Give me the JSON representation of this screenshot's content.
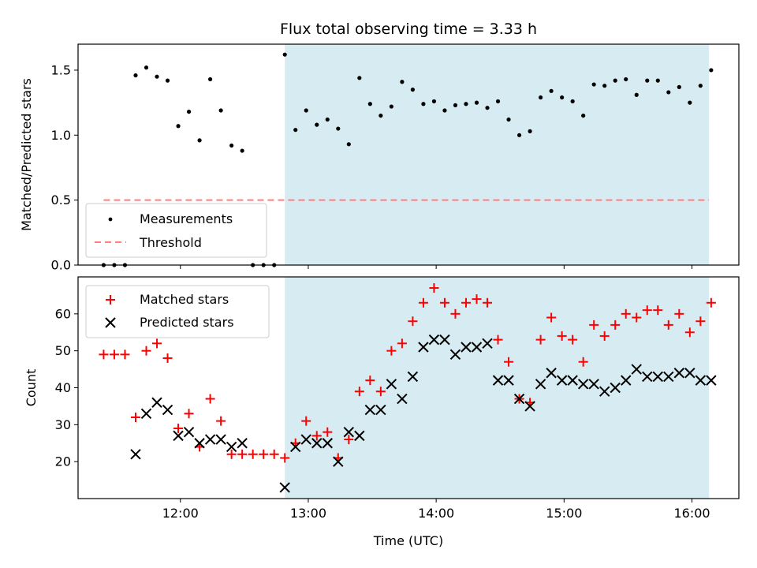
{
  "chart_data": [
    {
      "type": "scatter",
      "title": "Flux total observing time = 3.33 h",
      "xlabel": "",
      "ylabel": "Matched/Predicted stars",
      "xlim": [
        "11:12",
        "16:22"
      ],
      "ylim": [
        0,
        1.7
      ],
      "yticks": [
        "0.0",
        "0.5",
        "1.0",
        "1.5"
      ],
      "shaded_span": {
        "start": "12:49",
        "end": "16:08",
        "color": "#add8e6"
      },
      "legend_position": "lower-left",
      "legend": [
        "Measurements",
        "Threshold"
      ],
      "threshold": {
        "name": "Threshold",
        "value": 0.5,
        "x_start": "11:24",
        "x_end": "16:08",
        "color": "#ff7f7f"
      },
      "series": [
        {
          "name": "Measurements",
          "color": "#000000",
          "points": [
            [
              "11:24",
              0.0
            ],
            [
              "11:29",
              0.0
            ],
            [
              "11:34",
              0.0
            ],
            [
              "11:39",
              1.46
            ],
            [
              "11:44",
              1.52
            ],
            [
              "11:49",
              1.45
            ],
            [
              "11:54",
              1.42
            ],
            [
              "11:59",
              1.07
            ],
            [
              "12:04",
              1.18
            ],
            [
              "12:09",
              0.96
            ],
            [
              "12:14",
              1.43
            ],
            [
              "12:19",
              1.19
            ],
            [
              "12:24",
              0.92
            ],
            [
              "12:29",
              0.88
            ],
            [
              "12:34",
              0.0
            ],
            [
              "12:39",
              0.0
            ],
            [
              "12:44",
              0.0
            ],
            [
              "12:49",
              1.62
            ],
            [
              "12:54",
              1.04
            ],
            [
              "12:59",
              1.19
            ],
            [
              "13:04",
              1.08
            ],
            [
              "13:09",
              1.12
            ],
            [
              "13:14",
              1.05
            ],
            [
              "13:19",
              0.93
            ],
            [
              "13:24",
              1.44
            ],
            [
              "13:29",
              1.24
            ],
            [
              "13:34",
              1.15
            ],
            [
              "13:39",
              1.22
            ],
            [
              "13:44",
              1.41
            ],
            [
              "13:49",
              1.35
            ],
            [
              "13:54",
              1.24
            ],
            [
              "13:59",
              1.26
            ],
            [
              "14:04",
              1.19
            ],
            [
              "14:09",
              1.23
            ],
            [
              "14:14",
              1.24
            ],
            [
              "14:19",
              1.25
            ],
            [
              "14:24",
              1.21
            ],
            [
              "14:29",
              1.26
            ],
            [
              "14:34",
              1.12
            ],
            [
              "14:39",
              1.0
            ],
            [
              "14:44",
              1.03
            ],
            [
              "14:49",
              1.29
            ],
            [
              "14:54",
              1.34
            ],
            [
              "14:59",
              1.29
            ],
            [
              "15:04",
              1.26
            ],
            [
              "15:09",
              1.15
            ],
            [
              "15:14",
              1.39
            ],
            [
              "15:19",
              1.38
            ],
            [
              "15:24",
              1.42
            ],
            [
              "15:29",
              1.43
            ],
            [
              "15:34",
              1.31
            ],
            [
              "15:39",
              1.42
            ],
            [
              "15:44",
              1.42
            ],
            [
              "15:49",
              1.33
            ],
            [
              "15:54",
              1.37
            ],
            [
              "15:59",
              1.25
            ],
            [
              "16:04",
              1.38
            ],
            [
              "16:09",
              1.5
            ]
          ]
        }
      ]
    },
    {
      "type": "scatter",
      "title": "",
      "xlabel": "Time (UTC)",
      "ylabel": "Count",
      "xlim": [
        "11:12",
        "16:22"
      ],
      "ylim": [
        10,
        70
      ],
      "yticks": [
        "20",
        "30",
        "40",
        "50",
        "60"
      ],
      "xticks": [
        "12:00",
        "13:00",
        "14:00",
        "15:00",
        "16:00"
      ],
      "shaded_span": {
        "start": "12:49",
        "end": "16:08",
        "color": "#add8e6"
      },
      "legend_position": "upper-left",
      "legend": [
        "Matched stars",
        "Predicted stars"
      ],
      "series": [
        {
          "name": "Matched stars",
          "color": "#ff0000",
          "marker": "plus",
          "points": [
            [
              "11:24",
              49
            ],
            [
              "11:29",
              49
            ],
            [
              "11:34",
              49
            ],
            [
              "11:39",
              32
            ],
            [
              "11:44",
              50
            ],
            [
              "11:49",
              52
            ],
            [
              "11:54",
              48
            ],
            [
              "11:59",
              29
            ],
            [
              "12:04",
              33
            ],
            [
              "12:09",
              24
            ],
            [
              "12:14",
              37
            ],
            [
              "12:19",
              31
            ],
            [
              "12:24",
              22
            ],
            [
              "12:29",
              22
            ],
            [
              "12:34",
              22
            ],
            [
              "12:39",
              22
            ],
            [
              "12:44",
              22
            ],
            [
              "12:49",
              21
            ],
            [
              "12:54",
              25
            ],
            [
              "12:59",
              31
            ],
            [
              "13:04",
              27
            ],
            [
              "13:09",
              28
            ],
            [
              "13:14",
              21
            ],
            [
              "13:19",
              26
            ],
            [
              "13:24",
              39
            ],
            [
              "13:29",
              42
            ],
            [
              "13:34",
              39
            ],
            [
              "13:39",
              50
            ],
            [
              "13:44",
              52
            ],
            [
              "13:49",
              58
            ],
            [
              "13:54",
              63
            ],
            [
              "13:59",
              67
            ],
            [
              "14:04",
              63
            ],
            [
              "14:09",
              60
            ],
            [
              "14:14",
              63
            ],
            [
              "14:19",
              64
            ],
            [
              "14:24",
              63
            ],
            [
              "14:29",
              53
            ],
            [
              "14:34",
              47
            ],
            [
              "14:39",
              37
            ],
            [
              "14:44",
              36
            ],
            [
              "14:49",
              53
            ],
            [
              "14:54",
              59
            ],
            [
              "14:59",
              54
            ],
            [
              "15:04",
              53
            ],
            [
              "15:09",
              47
            ],
            [
              "15:14",
              57
            ],
            [
              "15:19",
              54
            ],
            [
              "15:24",
              57
            ],
            [
              "15:29",
              60
            ],
            [
              "15:34",
              59
            ],
            [
              "15:39",
              61
            ],
            [
              "15:44",
              61
            ],
            [
              "15:49",
              57
            ],
            [
              "15:54",
              60
            ],
            [
              "15:59",
              55
            ],
            [
              "16:04",
              58
            ],
            [
              "16:09",
              63
            ]
          ]
        },
        {
          "name": "Predicted stars",
          "color": "#000000",
          "marker": "x",
          "points": [
            [
              "11:39",
              22
            ],
            [
              "11:44",
              33
            ],
            [
              "11:49",
              36
            ],
            [
              "11:54",
              34
            ],
            [
              "11:59",
              27
            ],
            [
              "12:04",
              28
            ],
            [
              "12:09",
              25
            ],
            [
              "12:14",
              26
            ],
            [
              "12:19",
              26
            ],
            [
              "12:24",
              24
            ],
            [
              "12:29",
              25
            ],
            [
              "12:49",
              13
            ],
            [
              "12:54",
              24
            ],
            [
              "12:59",
              26
            ],
            [
              "13:04",
              25
            ],
            [
              "13:09",
              25
            ],
            [
              "13:14",
              20
            ],
            [
              "13:19",
              28
            ],
            [
              "13:24",
              27
            ],
            [
              "13:29",
              34
            ],
            [
              "13:34",
              34
            ],
            [
              "13:39",
              41
            ],
            [
              "13:44",
              37
            ],
            [
              "13:49",
              43
            ],
            [
              "13:54",
              51
            ],
            [
              "13:59",
              53
            ],
            [
              "14:04",
              53
            ],
            [
              "14:09",
              49
            ],
            [
              "14:14",
              51
            ],
            [
              "14:19",
              51
            ],
            [
              "14:24",
              52
            ],
            [
              "14:29",
              42
            ],
            [
              "14:34",
              42
            ],
            [
              "14:39",
              37
            ],
            [
              "14:44",
              35
            ],
            [
              "14:49",
              41
            ],
            [
              "14:54",
              44
            ],
            [
              "14:59",
              42
            ],
            [
              "15:04",
              42
            ],
            [
              "15:09",
              41
            ],
            [
              "15:14",
              41
            ],
            [
              "15:19",
              39
            ],
            [
              "15:24",
              40
            ],
            [
              "15:29",
              42
            ],
            [
              "15:34",
              45
            ],
            [
              "15:39",
              43
            ],
            [
              "15:44",
              43
            ],
            [
              "15:49",
              43
            ],
            [
              "15:54",
              44
            ],
            [
              "15:59",
              44
            ],
            [
              "16:04",
              42
            ],
            [
              "16:09",
              42
            ]
          ]
        }
      ]
    }
  ]
}
